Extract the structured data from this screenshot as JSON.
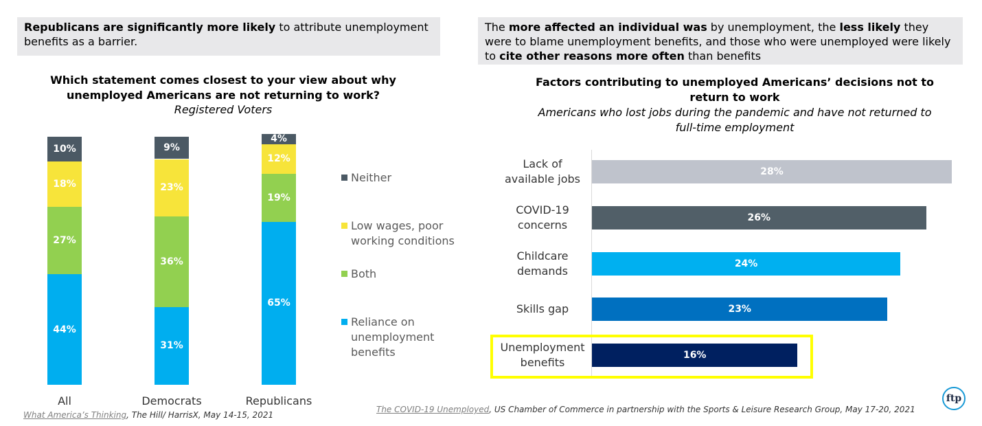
{
  "callouts": [
    {
      "segments": [
        {
          "text": "Republicans are significantly more likely",
          "bold": true
        },
        {
          "text": " to attribute unemployment benefits as a barrier."
        }
      ]
    },
    {
      "segments": [
        {
          "text": "The "
        },
        {
          "text": "more affected an individual was",
          "bold": true
        },
        {
          "text": " by unemployment, the "
        },
        {
          "text": "less likely",
          "bold": true
        },
        {
          "text": " they were to blame unemployment benefits, and those who were unemployed were likely to "
        },
        {
          "text": "cite other reasons more often",
          "bold": true
        },
        {
          "text": " than benefits"
        }
      ]
    }
  ],
  "chart_data": [
    {
      "type": "stacked_bar",
      "title": "Which statement comes closest to your view about why unemployed Americans are not returning to work?",
      "subtitle": "Registered Voters",
      "categories": [
        "All",
        "Democrats",
        "Republicans"
      ],
      "ylim": [
        0,
        100
      ],
      "series": [
        {
          "name": "Reliance on unemployment benefits",
          "color": "#00aeef",
          "values": [
            44,
            31,
            65
          ],
          "value_labels": [
            "44%",
            "31%",
            "65%"
          ]
        },
        {
          "name": "Both",
          "color": "#92d050",
          "values": [
            27,
            36,
            19
          ],
          "value_labels": [
            "27%",
            "36%",
            "19%"
          ]
        },
        {
          "name": "Low wages, poor working conditions",
          "color": "#f7e43a",
          "values": [
            18,
            23,
            12
          ],
          "value_labels": [
            "18%",
            "23%",
            "12%"
          ]
        },
        {
          "name": "Neither",
          "color": "#4b5964",
          "values": [
            10,
            9,
            4
          ],
          "value_labels": [
            "10%",
            "9%",
            "4%"
          ]
        }
      ]
    },
    {
      "type": "hbar",
      "title": "Factors contributing to unemployed Americans’ decisions not to return to work",
      "subtitle": "Americans who lost jobs during the pandemic and have not returned to full-time employment",
      "categories": [
        "Lack of available jobs",
        "COVID-19 concerns",
        "Childcare demands",
        "Skills gap",
        "Unemployment benefits"
      ],
      "values": [
        28,
        26,
        24,
        23,
        16
      ],
      "value_labels": [
        "28%",
        "26%",
        "24%",
        "23%",
        "16%"
      ],
      "colors": [
        "#bfc3cc",
        "#515f68",
        "#00b0f0",
        "#0070c0",
        "#002060"
      ],
      "xlim": [
        0,
        28
      ]
    }
  ],
  "sources": [
    {
      "link": "What America’s Thinking",
      "text": ", The Hill/ HarrisX, May 14-15, 2021"
    },
    {
      "link": "The COVID-19 Unemployed",
      "text": ", US Chamber of Commerce in partnership with the Sports & Leisure Research Group, May 17-20, 2021"
    }
  ],
  "logo": "ftp"
}
